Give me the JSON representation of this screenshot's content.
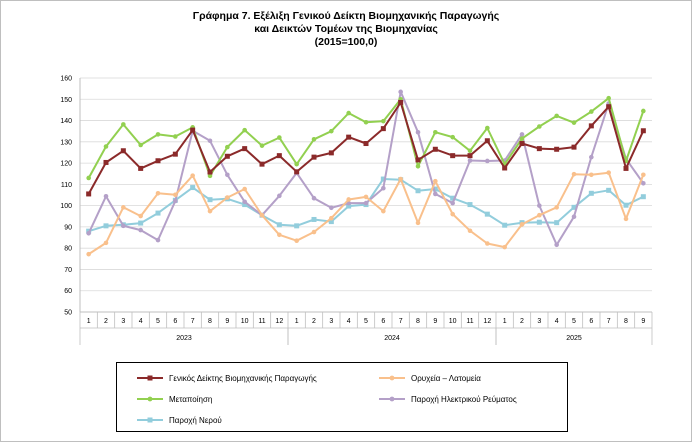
{
  "title_lines": [
    "Γράφημα 7. Εξέλιξη Γενικού Δείκτη Βιομηχανικής Παραγωγής",
    "και Δεικτών Τομέων της Βιομηχανίας",
    "(2015=100,0)"
  ],
  "chart_data": {
    "type": "line",
    "title": "Γράφημα 7. Εξέλιξη Γενικού Δείκτη Βιομηχανικής Παραγωγής και Δεικτών Τομέων της Βιομηχανίας (2015=100,0)",
    "x": [
      "1",
      "2",
      "3",
      "4",
      "5",
      "6",
      "7",
      "8",
      "9",
      "10",
      "11",
      "12",
      "1",
      "2",
      "3",
      "4",
      "5",
      "6",
      "7",
      "8",
      "9",
      "10",
      "11",
      "12",
      "1",
      "2",
      "3",
      "4",
      "5",
      "6",
      "7",
      "8",
      "9"
    ],
    "year_groups": [
      {
        "label": "2023",
        "start": 0,
        "count": 12
      },
      {
        "label": "2024",
        "start": 12,
        "count": 12
      },
      {
        "label": "2025",
        "start": 24,
        "count": 9
      }
    ],
    "ylim": [
      50,
      160
    ],
    "yticks": [
      50,
      60,
      70,
      80,
      90,
      100,
      110,
      120,
      130,
      140,
      150,
      160
    ],
    "grid": true,
    "legend_position": "bottom",
    "series": [
      {
        "name": "Γενικός Δείκτης Βιομηχανικής Παραγωγής",
        "color": "#8B2A2A",
        "marker": "square",
        "values": [
          105.5,
          120.3,
          125.8,
          117.5,
          121.1,
          124.2,
          135.5,
          115.8,
          123.2,
          126.8,
          119.5,
          123.5,
          115.9,
          122.8,
          124.8,
          132.2,
          129.2,
          136.2,
          148.5,
          121.5,
          126.5,
          123.5,
          123.5,
          130.5,
          117.7,
          129.2,
          126.8,
          126.5,
          127.5,
          137.5,
          146.5,
          117.5,
          135.2
        ]
      },
      {
        "name": "Ορυχεία – Λατομεία",
        "color": "#F9C08C",
        "marker": "circle",
        "values": [
          77.2,
          82.5,
          99.2,
          95.1,
          105.8,
          105.1,
          114.1,
          97.4,
          103.8,
          107.8,
          95.5,
          86.3,
          83.5,
          87.6,
          94.1,
          102.9,
          104.1,
          97.4,
          112.5,
          91.9,
          111.5,
          96.0,
          88.2,
          82.2,
          80.5,
          91.2,
          95.5,
          99.2,
          114.8,
          114.5,
          115.5,
          93.8,
          114.5
        ]
      },
      {
        "name": "Μεταποίηση",
        "color": "#92D050",
        "marker": "circle",
        "values": [
          113.0,
          127.8,
          138.2,
          128.5,
          133.5,
          132.5,
          136.8,
          114.0,
          127.5,
          135.5,
          128.2,
          132.0,
          119.5,
          131.2,
          135.0,
          143.5,
          139.2,
          139.7,
          150.0,
          118.5,
          134.5,
          132.2,
          125.8,
          136.5,
          119.5,
          131.5,
          137.2,
          142.2,
          139.0,
          144.2,
          150.5,
          121.0,
          144.5
        ]
      },
      {
        "name": "Παροχή Ηλεκτρικού Ρεύματος",
        "color": "#B4A0C8",
        "marker": "circle",
        "values": [
          87.0,
          104.4,
          90.5,
          88.5,
          83.8,
          102.2,
          135.2,
          130.5,
          114.5,
          101.8,
          95.5,
          104.6,
          115.4,
          103.5,
          99.0,
          101.2,
          101.2,
          108.2,
          153.5,
          134.5,
          105.5,
          101.2,
          121.2,
          121.0,
          121.2,
          133.5,
          100.0,
          81.6,
          94.8,
          122.8,
          148.0,
          122.0,
          110.5
        ]
      },
      {
        "name": "Παροχή Νερού",
        "color": "#92CDDC",
        "marker": "square",
        "values": [
          88.0,
          90.5,
          91.0,
          91.8,
          96.5,
          102.5,
          108.5,
          102.8,
          103.2,
          100.5,
          95.5,
          91.0,
          90.5,
          93.5,
          92.5,
          99.8,
          100.5,
          112.5,
          112.2,
          107.0,
          107.8,
          103.5,
          100.5,
          96.0,
          90.8,
          92.0,
          92.2,
          92.0,
          99.2,
          105.8,
          107.2,
          100.2,
          104.2
        ]
      }
    ]
  }
}
